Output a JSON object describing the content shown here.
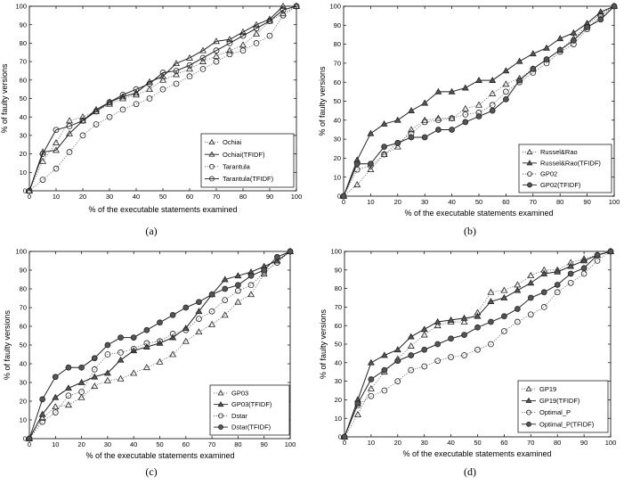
{
  "chart_data": [
    {
      "type": "line",
      "panel_label": "(a)",
      "xlabel": "% of the executable statements examined",
      "ylabel": "% of faulty versions",
      "xlim": [
        0,
        100
      ],
      "ylim": [
        0,
        100
      ],
      "xticks": [
        0,
        10,
        20,
        30,
        40,
        50,
        60,
        70,
        80,
        90,
        100
      ],
      "yticks": [
        0,
        10,
        20,
        30,
        40,
        50,
        60,
        70,
        80,
        90,
        100
      ],
      "grid": false,
      "legend_position": "bottom-right",
      "series": [
        {
          "name": "Ochiai",
          "marker": "triangle-open",
          "line": "dotted",
          "x": [
            0,
            5,
            10,
            15,
            20,
            25,
            30,
            35,
            40,
            45,
            50,
            55,
            60,
            65,
            70,
            75,
            80,
            85,
            90,
            95,
            100
          ],
          "y": [
            0,
            16,
            26,
            38,
            40,
            43,
            47,
            50,
            52,
            55,
            60,
            63,
            66,
            70,
            73,
            76,
            79,
            85,
            92,
            96,
            100
          ]
        },
        {
          "name": "Ochiai(TFIDF)",
          "marker": "triangle-open",
          "line": "solid",
          "x": [
            0,
            5,
            10,
            15,
            20,
            25,
            30,
            35,
            40,
            45,
            50,
            55,
            60,
            65,
            70,
            75,
            80,
            85,
            90,
            95,
            100
          ],
          "y": [
            0,
            21,
            22,
            31,
            38,
            44,
            48,
            51,
            53,
            59,
            62,
            69,
            72,
            76,
            81,
            82,
            86,
            90,
            93,
            100,
            100
          ]
        },
        {
          "name": "Tarantula",
          "marker": "circle-open",
          "line": "dotted",
          "x": [
            0,
            5,
            10,
            15,
            20,
            25,
            30,
            35,
            40,
            45,
            50,
            55,
            60,
            65,
            70,
            75,
            80,
            85,
            90,
            95,
            100
          ],
          "y": [
            0,
            6,
            12,
            21,
            30,
            36,
            40,
            44,
            47,
            50,
            55,
            58,
            62,
            66,
            70,
            74,
            76,
            80,
            84,
            95,
            100
          ]
        },
        {
          "name": "Tarantula(TFIDF)",
          "marker": "circle-open",
          "line": "solid",
          "x": [
            0,
            5,
            10,
            15,
            20,
            25,
            30,
            35,
            40,
            45,
            50,
            55,
            60,
            65,
            70,
            75,
            80,
            85,
            90,
            95,
            100
          ],
          "y": [
            0,
            20,
            33,
            35,
            38,
            43,
            48,
            52,
            55,
            58,
            64,
            65,
            68,
            72,
            76,
            80,
            84,
            88,
            92,
            98,
            100
          ]
        }
      ]
    },
    {
      "type": "line",
      "panel_label": "(b)",
      "xlabel": "% of the executable statements examined",
      "ylabel": "% of faulty versions",
      "xlim": [
        0,
        100
      ],
      "ylim": [
        0,
        100
      ],
      "xticks": [
        0,
        10,
        20,
        30,
        40,
        50,
        60,
        70,
        80,
        90,
        100
      ],
      "yticks": [
        0,
        10,
        20,
        30,
        40,
        50,
        60,
        70,
        80,
        90,
        100
      ],
      "grid": false,
      "legend_position": "bottom-right",
      "series": [
        {
          "name": "Russel&Rao",
          "marker": "triangle-open",
          "line": "dotted",
          "x": [
            0,
            5,
            10,
            15,
            20,
            25,
            30,
            35,
            40,
            45,
            50,
            55,
            60,
            65,
            70,
            75,
            80,
            85,
            90,
            95,
            100
          ],
          "y": [
            0,
            6,
            14,
            22,
            26,
            35,
            40,
            41,
            41,
            46,
            48,
            54,
            59,
            62,
            67,
            72,
            77,
            83,
            90,
            96,
            100
          ]
        },
        {
          "name": "Russel&Rao(TFIDF)",
          "marker": "triangle-solid",
          "line": "solid",
          "x": [
            0,
            5,
            10,
            15,
            20,
            25,
            30,
            35,
            40,
            45,
            50,
            55,
            60,
            65,
            70,
            75,
            80,
            85,
            90,
            95,
            100
          ],
          "y": [
            0,
            19,
            33,
            38,
            40,
            45,
            49,
            55,
            55,
            57,
            61,
            61,
            66,
            71,
            75,
            78,
            83,
            86,
            91,
            97,
            100
          ]
        },
        {
          "name": "GP02",
          "marker": "circle-open",
          "line": "dotted",
          "x": [
            0,
            5,
            10,
            15,
            20,
            25,
            30,
            35,
            40,
            45,
            50,
            55,
            60,
            65,
            70,
            75,
            80,
            85,
            90,
            95,
            100
          ],
          "y": [
            0,
            14,
            16,
            22,
            28,
            33,
            39,
            40,
            41,
            43,
            44,
            48,
            55,
            60,
            65,
            70,
            76,
            80,
            88,
            95,
            100
          ]
        },
        {
          "name": "GP02(TFIDF)",
          "marker": "circle-solid",
          "line": "solid",
          "x": [
            0,
            5,
            10,
            15,
            20,
            25,
            30,
            35,
            40,
            45,
            50,
            55,
            60,
            65,
            70,
            75,
            80,
            85,
            90,
            95,
            100
          ],
          "y": [
            0,
            17,
            17,
            26,
            28,
            31,
            31,
            35,
            35,
            39,
            42,
            45,
            51,
            61,
            67,
            72,
            77,
            82,
            89,
            93,
            100
          ]
        }
      ]
    },
    {
      "type": "line",
      "panel_label": "(c)",
      "xlabel": "% of the executable statements examined",
      "ylabel": "% of faulty versions",
      "xlim": [
        0,
        100
      ],
      "ylim": [
        0,
        100
      ],
      "xticks": [
        0,
        10,
        20,
        30,
        40,
        50,
        60,
        70,
        80,
        90,
        100
      ],
      "yticks": [
        0,
        10,
        20,
        30,
        40,
        50,
        60,
        70,
        80,
        90,
        100
      ],
      "grid": false,
      "legend_position": "bottom-right",
      "series": [
        {
          "name": "GP03",
          "marker": "triangle-open",
          "line": "dotted",
          "x": [
            0,
            5,
            10,
            15,
            20,
            25,
            30,
            35,
            40,
            45,
            50,
            55,
            60,
            65,
            70,
            75,
            80,
            85,
            90,
            95,
            100
          ],
          "y": [
            0,
            11,
            17,
            18,
            22,
            28,
            31,
            32,
            35,
            38,
            41,
            45,
            52,
            57,
            61,
            66,
            73,
            77,
            88,
            95,
            100
          ]
        },
        {
          "name": "GP03(TFIDF)",
          "marker": "triangle-solid",
          "line": "solid",
          "x": [
            0,
            5,
            10,
            15,
            20,
            25,
            30,
            35,
            40,
            45,
            50,
            55,
            60,
            65,
            70,
            75,
            80,
            85,
            90,
            95,
            100
          ],
          "y": [
            0,
            13,
            22,
            27,
            30,
            33,
            35,
            42,
            47,
            49,
            51,
            54,
            59,
            68,
            77,
            85,
            87,
            89,
            92,
            95,
            100
          ]
        },
        {
          "name": "Dstar",
          "marker": "circle-open",
          "line": "dotted",
          "x": [
            0,
            5,
            10,
            15,
            20,
            25,
            30,
            35,
            40,
            45,
            50,
            55,
            60,
            65,
            70,
            75,
            80,
            85,
            90,
            95,
            100
          ],
          "y": [
            0,
            9,
            14,
            23,
            25,
            37,
            45,
            46,
            48,
            51,
            52,
            56,
            58,
            64,
            68,
            74,
            79,
            82,
            89,
            94,
            100
          ]
        },
        {
          "name": "Dstar(TFIDF)",
          "marker": "circle-solid",
          "line": "solid",
          "x": [
            0,
            5,
            10,
            15,
            20,
            25,
            30,
            35,
            40,
            45,
            50,
            55,
            60,
            65,
            70,
            75,
            80,
            85,
            90,
            95,
            100
          ],
          "y": [
            0,
            21,
            33,
            38,
            38,
            43,
            50,
            54,
            54,
            58,
            62,
            66,
            70,
            73,
            77,
            80,
            82,
            87,
            90,
            97,
            100
          ]
        }
      ]
    },
    {
      "type": "line",
      "panel_label": "(d)",
      "xlabel": "% of the executable statements examined",
      "ylabel": "% of faulty versions",
      "xlim": [
        0,
        100
      ],
      "ylim": [
        0,
        100
      ],
      "xticks": [
        0,
        10,
        20,
        30,
        40,
        50,
        60,
        70,
        80,
        90,
        100
      ],
      "yticks": [
        0,
        10,
        20,
        30,
        40,
        50,
        60,
        70,
        80,
        90,
        100
      ],
      "grid": false,
      "legend_position": "bottom-right",
      "series": [
        {
          "name": "GP19",
          "marker": "triangle-open",
          "line": "dotted",
          "x": [
            0,
            5,
            10,
            15,
            20,
            25,
            30,
            35,
            40,
            45,
            50,
            55,
            60,
            65,
            70,
            75,
            80,
            85,
            90,
            95,
            100
          ],
          "y": [
            0,
            12,
            26,
            35,
            42,
            49,
            55,
            60,
            62,
            62,
            67,
            78,
            79,
            82,
            87,
            90,
            90,
            94,
            96,
            98,
            100
          ]
        },
        {
          "name": "GP19(TFIDF)",
          "marker": "triangle-solid",
          "line": "solid",
          "x": [
            0,
            5,
            10,
            15,
            20,
            25,
            30,
            35,
            40,
            45,
            50,
            55,
            60,
            65,
            70,
            75,
            80,
            85,
            90,
            95,
            100
          ],
          "y": [
            0,
            20,
            40,
            44,
            47,
            54,
            58,
            62,
            63,
            64,
            65,
            73,
            75,
            79,
            83,
            88,
            89,
            92,
            95,
            98,
            100
          ]
        },
        {
          "name": "Optimal_P",
          "marker": "circle-open",
          "line": "dotted",
          "x": [
            0,
            5,
            10,
            15,
            20,
            25,
            30,
            35,
            40,
            45,
            50,
            55,
            60,
            65,
            70,
            75,
            80,
            85,
            90,
            95,
            100
          ],
          "y": [
            0,
            17,
            22,
            25,
            30,
            36,
            38,
            41,
            43,
            44,
            47,
            50,
            57,
            62,
            66,
            70,
            78,
            83,
            88,
            95,
            100
          ]
        },
        {
          "name": "Optimal_P(TFIDF)",
          "marker": "circle-solid",
          "line": "solid",
          "x": [
            0,
            5,
            10,
            15,
            20,
            25,
            30,
            35,
            40,
            45,
            50,
            55,
            60,
            65,
            70,
            75,
            80,
            85,
            90,
            95,
            100
          ],
          "y": [
            0,
            18,
            31,
            36,
            41,
            44,
            47,
            50,
            53,
            55,
            59,
            62,
            65,
            69,
            75,
            78,
            82,
            88,
            91,
            98,
            100
          ]
        }
      ]
    }
  ]
}
